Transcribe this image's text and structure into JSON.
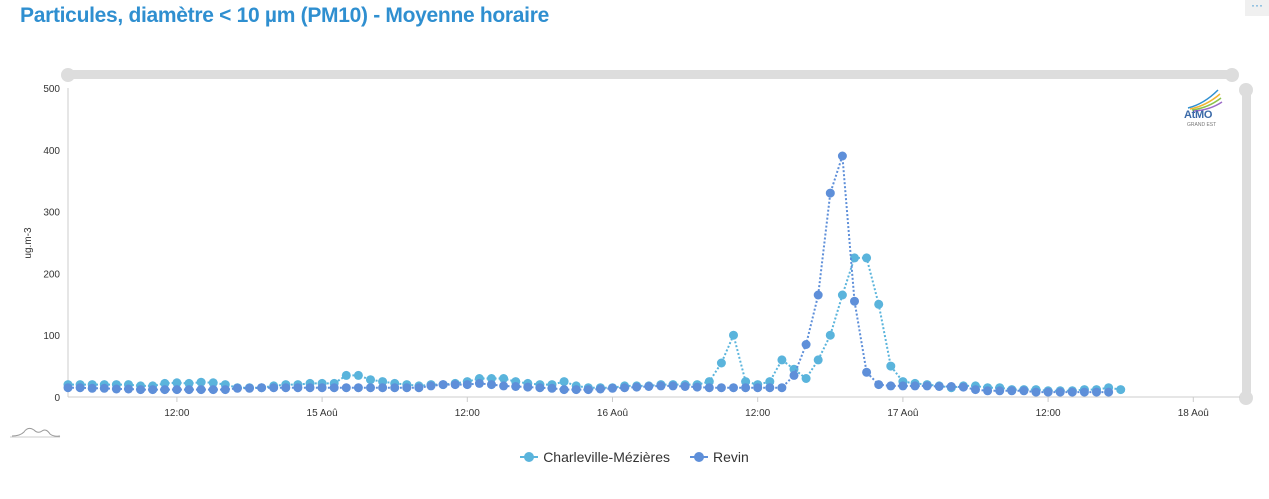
{
  "header": {
    "title": "Particules, diamètre < 10 µm (PM10) - Moyenne horaire",
    "menu_label": "···"
  },
  "logo": {
    "text": "AtMO",
    "sub": "GRAND EST"
  },
  "chart_data": {
    "type": "line",
    "title": "Particules, diamètre < 10 µm (PM10) - Moyenne horaire",
    "ylabel": "ug.m-3",
    "xlabel": "",
    "ylim": [
      0,
      500
    ],
    "yticks": [
      0,
      100,
      200,
      300,
      400,
      500
    ],
    "xticks": [
      "12:00",
      "15 Aoû",
      "12:00",
      "16 Aoû",
      "12:00",
      "17 Aoû",
      "12:00",
      "18 Aoû"
    ],
    "x_start": "14 Aoû 03:00",
    "x_step_hours": 1,
    "grid": false,
    "legend_position": "bottom",
    "series": [
      {
        "name": "Charleville-Mézières",
        "color": "#5ab4dc",
        "values": [
          20,
          20,
          20,
          20,
          20,
          20,
          18,
          18,
          22,
          23,
          22,
          24,
          23,
          20,
          15,
          15,
          15,
          18,
          20,
          20,
          22,
          22,
          22,
          35,
          35,
          28,
          25,
          22,
          20,
          18,
          20,
          20,
          22,
          25,
          30,
          30,
          30,
          25,
          22,
          20,
          20,
          25,
          18,
          15,
          15,
          15,
          18,
          18,
          18,
          20,
          20,
          20,
          20,
          25,
          55,
          100,
          25,
          20,
          25,
          60,
          45,
          30,
          60,
          100,
          165,
          225,
          225,
          150,
          50,
          25,
          22,
          20,
          18,
          15,
          18,
          18,
          15,
          15,
          12,
          12,
          12,
          10,
          10,
          10,
          12,
          12,
          15,
          12
        ]
      },
      {
        "name": "Revin",
        "color": "#5e8fd9",
        "values": [
          15,
          15,
          14,
          14,
          13,
          13,
          12,
          12,
          12,
          12,
          12,
          12,
          12,
          12,
          14,
          14,
          15,
          15,
          15,
          15,
          15,
          15,
          15,
          15,
          15,
          15,
          15,
          15,
          15,
          15,
          18,
          20,
          20,
          20,
          22,
          20,
          18,
          17,
          16,
          15,
          14,
          12,
          12,
          12,
          13,
          14,
          15,
          16,
          17,
          18,
          18,
          17,
          16,
          15,
          15,
          15,
          15,
          15,
          15,
          15,
          35,
          85,
          165,
          330,
          390,
          155,
          40,
          20,
          18,
          18,
          18,
          18,
          17,
          17,
          16,
          12,
          10,
          10,
          10,
          10,
          8,
          8,
          8,
          8,
          8,
          8,
          8
        ]
      }
    ]
  }
}
